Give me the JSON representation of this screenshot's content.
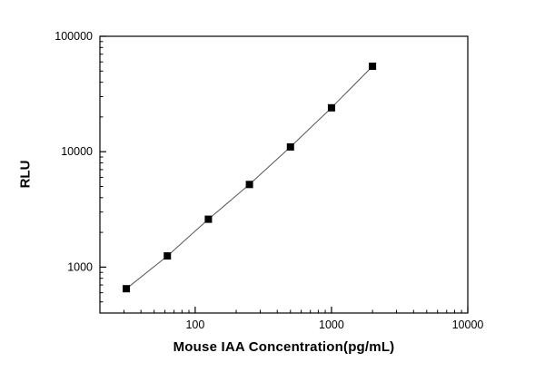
{
  "figure": {
    "background": "#ffffff",
    "x_axis_label": "Mouse IAA Concentration(pg/mL)",
    "y_axis_label": "RLU"
  },
  "chart_data": {
    "type": "scatter",
    "title": "",
    "xlabel": "Mouse IAA Concentration(pg/mL)",
    "ylabel": "RLU",
    "x_scale": "log",
    "y_scale": "log",
    "xlim": [
      20,
      10000
    ],
    "ylim": [
      400,
      100000
    ],
    "x_ticks": [
      100,
      1000,
      10000
    ],
    "y_ticks": [
      1000,
      10000,
      100000
    ],
    "x": [
      31.25,
      62.5,
      125,
      250,
      500,
      1000,
      2000
    ],
    "y": [
      650,
      1250,
      2600,
      5200,
      11000,
      24000,
      55000
    ],
    "marker": "square",
    "marker_size": 7,
    "marker_color": "#000000",
    "line_color": "#555555",
    "axis_color": "#000000",
    "grid": false,
    "legend": "none"
  }
}
